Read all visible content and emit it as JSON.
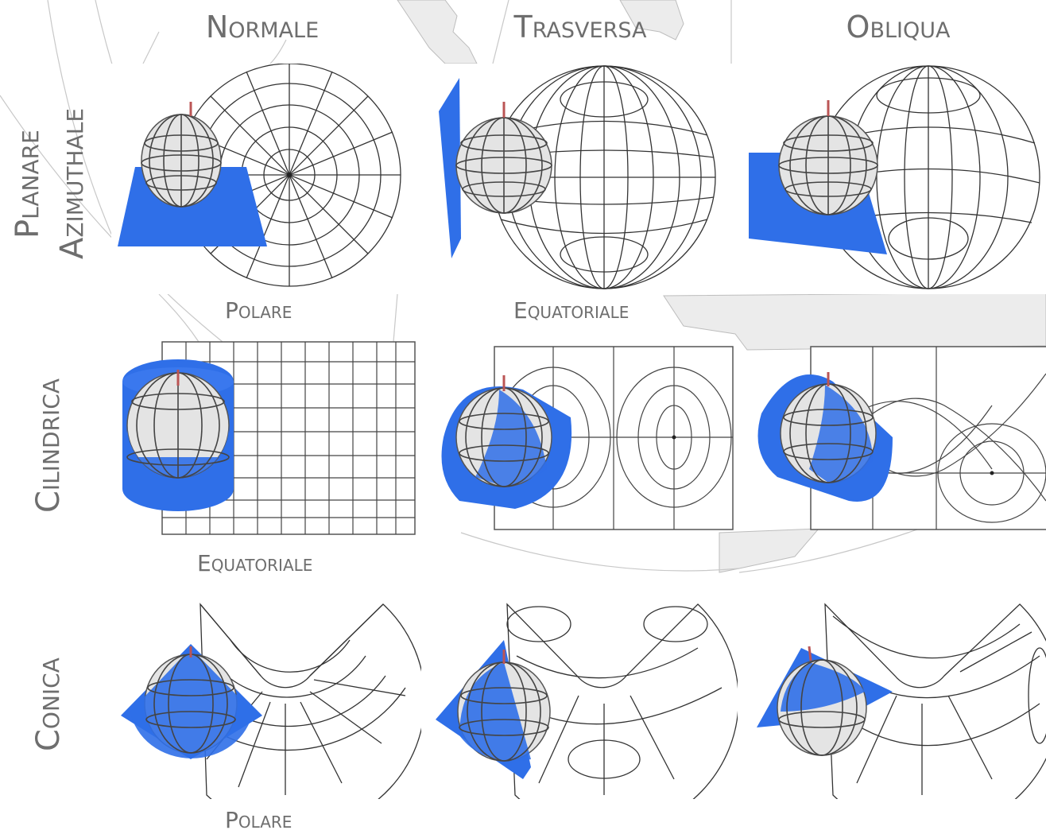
{
  "columns": {
    "normal": "Normale",
    "transverse": "Trasversa",
    "oblique": "Obliqua"
  },
  "rows": {
    "planar_line1": "Planare",
    "planar_line2": "Azimuthale",
    "cylindrical": "Cilindrica",
    "conic": "Conica"
  },
  "sublabels": {
    "planar_normal": "Polare",
    "planar_transverse": "Equatoriale",
    "cylindrical_normal": "Equatoriale",
    "conic_normal": "Polare"
  },
  "colors": {
    "projection_surface": "#2f6fe8",
    "label_gray": "#6e6e6e",
    "graticule": "#333333",
    "background_map": "#e9e9e9"
  }
}
